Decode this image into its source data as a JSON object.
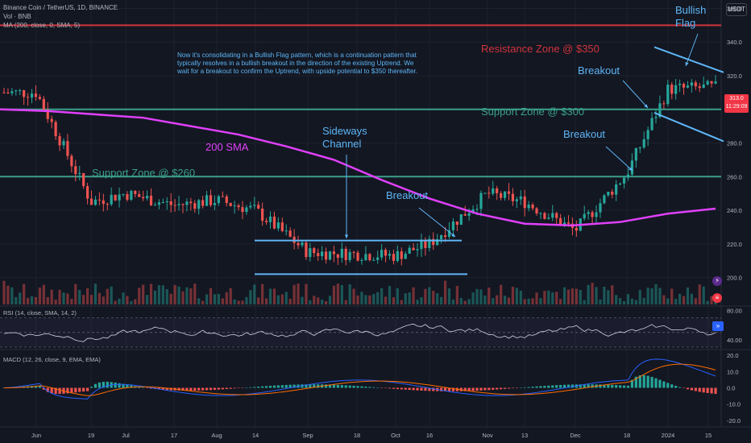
{
  "header": {
    "symbol_line": "Binance Coin / TetherUS, 1D, BINANCE",
    "volume_line": "Vol · BNB",
    "ma_line": "MA (200, close, 0, SMA, 5)",
    "currency": "USDT"
  },
  "price_tag": {
    "value": "313.0",
    "timer": "11:29:09"
  },
  "annotations": {
    "note": "Now it's consolidating in a Bullish Flag pattern, which is a continuation pattern that typically resolves in a bullish breakout in the direction of the existing Uptrend. We wait for a breakout to confirm the Uptrend, with upside potential to $350 thereafter.",
    "resistance_350": "Resistance Zone @ $350",
    "support_300": "Support Zone @ $300",
    "support_260": "Support Zone @ $260",
    "sma_label": "200 SMA",
    "sideways_1": "Sideways",
    "sideways_2": "Channel",
    "breakout": "Breakout",
    "bullish_1": "Bullish",
    "bullish_2": "Flag"
  },
  "colors": {
    "background": "#131722",
    "up": "#26a69a",
    "down": "#ef5350",
    "sma": "#e040fb",
    "annotation_blue": "#5eb6f6",
    "resistance": "#d0343c",
    "support": "#3b9f8b"
  },
  "chart_data": [
    {
      "type": "candlestick",
      "name": "price",
      "ylim": [
        184,
        365
      ],
      "y_ticks": [
        200,
        220,
        240,
        260,
        280,
        300,
        320,
        340,
        360
      ],
      "x_tick_labels": [
        "Jun",
        "19",
        "Jul",
        "17",
        "Aug",
        "14",
        "Sep",
        "18",
        "Oct",
        "16",
        "Nov",
        "13",
        "Dec",
        "18",
        "2024",
        "15"
      ],
      "levels": [
        350,
        300,
        260
      ],
      "sideways_channel": [
        222,
        202
      ],
      "sma_200": [
        300,
        299,
        297,
        295,
        290,
        285,
        278,
        270,
        258,
        247,
        238,
        232,
        231,
        233,
        238,
        241
      ],
      "key_closes": [
        {
          "x": "Jun",
          "close": 310
        },
        {
          "x": "19",
          "close": 245
        },
        {
          "x": "Jul",
          "close": 250
        },
        {
          "x": "17",
          "close": 243
        },
        {
          "x": "Aug",
          "close": 246
        },
        {
          "x": "14",
          "close": 240
        },
        {
          "x": "Sep",
          "close": 215
        },
        {
          "x": "18",
          "close": 214
        },
        {
          "x": "Oct",
          "close": 213
        },
        {
          "x": "16",
          "close": 220
        },
        {
          "x": "Nov",
          "close": 250
        },
        {
          "x": "13",
          "close": 245
        },
        {
          "x": "Dec",
          "close": 228
        },
        {
          "x": "18",
          "close": 262
        },
        {
          "x": "2024",
          "close": 312
        },
        {
          "x": "15",
          "close": 313
        }
      ]
    },
    {
      "type": "line",
      "name": "RSI (14, close, SMA, 14, 2)",
      "ylim": [
        30,
        85
      ],
      "y_ticks": [
        40,
        80
      ],
      "y_tick_labels": [
        "40.00",
        "80.00"
      ]
    },
    {
      "type": "line",
      "name": "MACD (12, 26, close, 9, EMA, EMA)",
      "ylim": [
        -23,
        23
      ],
      "y_ticks": [
        20,
        10,
        0,
        -10,
        -20
      ],
      "y_tick_labels": [
        "20.0",
        "10.0",
        "0.0",
        "-10.0",
        "-20.0"
      ]
    }
  ]
}
